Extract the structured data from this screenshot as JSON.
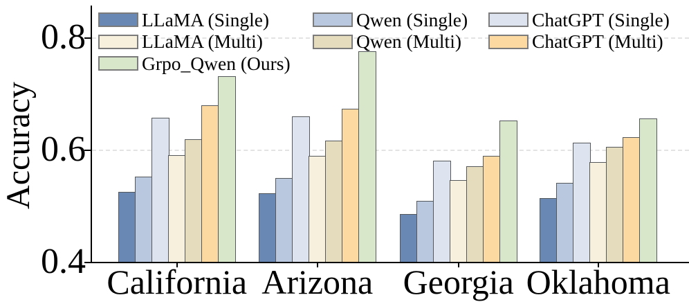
{
  "chart_data": {
    "type": "bar",
    "title": "",
    "ylabel": "Accuracy",
    "xlabel": "",
    "categories": [
      "California",
      "Arizona",
      "Georgia",
      "Oklahoma"
    ],
    "series": [
      {
        "name": "LLaMA (Single)",
        "color": "#6989b4",
        "values": [
          0.526,
          0.524,
          0.486,
          0.515
        ]
      },
      {
        "name": "Qwen (Single)",
        "color": "#b9c8de",
        "values": [
          0.553,
          0.551,
          0.51,
          0.542
        ]
      },
      {
        "name": "ChatGPT (Single)",
        "color": "#dee4ef",
        "values": [
          0.658,
          0.661,
          0.581,
          0.614
        ]
      },
      {
        "name": "LLaMA (Multi)",
        "color": "#f7f0dc",
        "values": [
          0.592,
          0.59,
          0.547,
          0.579
        ]
      },
      {
        "name": "Qwen (Multi)",
        "color": "#e5dcbe",
        "values": [
          0.62,
          0.617,
          0.572,
          0.606
        ]
      },
      {
        "name": "ChatGPT (Multi)",
        "color": "#fdd9a2",
        "values": [
          0.68,
          0.674,
          0.59,
          0.623
        ]
      },
      {
        "name": "Grpo_Qwen (Ours)",
        "color": "#d8e7ca",
        "values": [
          0.732,
          0.776,
          0.653,
          0.657
        ]
      }
    ],
    "ylim": [
      0.4,
      0.86
    ],
    "yticks": [
      0.4,
      0.6,
      0.8
    ],
    "grid": {
      "axis": "y",
      "style": "dashed",
      "at": [
        0.6,
        0.8
      ],
      "color": "#e3e3e3"
    },
    "bar_edge_color": "#54585a",
    "legend": {
      "position": "upper-left",
      "columns": [
        [
          "LLaMA (Single)",
          "LLaMA (Multi)",
          "Grpo_Qwen (Ours)"
        ],
        [
          "Qwen (Single)",
          "Qwen (Multi)"
        ],
        [
          "ChatGPT (Single)",
          "ChatGPT (Multi)"
        ]
      ]
    }
  }
}
